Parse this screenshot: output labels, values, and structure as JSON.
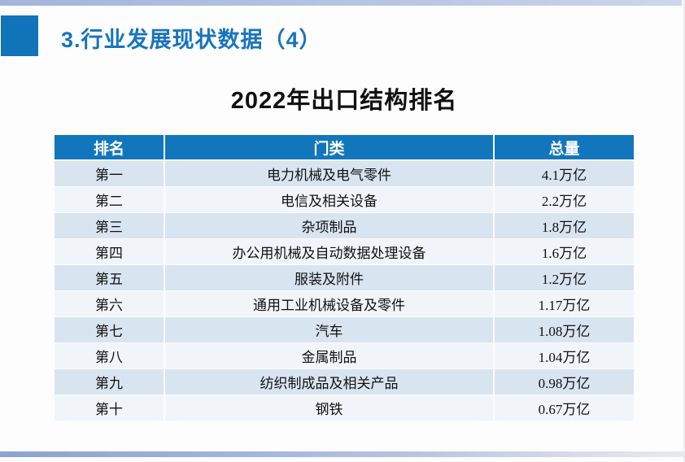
{
  "slide": {
    "header_title": "3.行业发展现状数据（4）",
    "table_title": "2022年出口结构排名"
  },
  "table": {
    "columns": [
      "排名",
      "门类",
      "总量"
    ],
    "rows": [
      [
        "第一",
        "电力机械及电气零件",
        "4.1万亿"
      ],
      [
        "第二",
        "电信及相关设备",
        "2.2万亿"
      ],
      [
        "第三",
        "杂项制品",
        "1.8万亿"
      ],
      [
        "第四",
        "办公用机械及自动数据处理设备",
        "1.6万亿"
      ],
      [
        "第五",
        "服装及附件",
        "1.2万亿"
      ],
      [
        "第六",
        "通用工业机械设备及零件",
        "1.17万亿"
      ],
      [
        "第七",
        "汽车",
        "1.08万亿"
      ],
      [
        "第八",
        "金属制品",
        "1.04万亿"
      ],
      [
        "第九",
        "纺织制成品及相关产品",
        "0.98万亿"
      ],
      [
        "第十",
        "钢铁",
        "0.67万亿"
      ]
    ]
  },
  "colors": {
    "accent_blue": "#1176bc",
    "title_blue": "#1874bc",
    "row_odd": "#d9e4f1",
    "row_even": "#f1f5fa",
    "top_bar": "#a3b5dc",
    "bottom_bar": "#8ca4d0"
  },
  "chart_data": {
    "type": "table",
    "title": "2022年出口结构排名",
    "columns": [
      "排名",
      "门类",
      "总量"
    ],
    "rows": [
      {
        "rank": "第一",
        "category": "电力机械及电气零件",
        "total": "4.1万亿"
      },
      {
        "rank": "第二",
        "category": "电信及相关设备",
        "total": "2.2万亿"
      },
      {
        "rank": "第三",
        "category": "杂项制品",
        "total": "1.8万亿"
      },
      {
        "rank": "第四",
        "category": "办公用机械及自动数据处理设备",
        "total": "1.6万亿"
      },
      {
        "rank": "第五",
        "category": "服装及附件",
        "total": "1.2万亿"
      },
      {
        "rank": "第六",
        "category": "通用工业机械设备及零件",
        "total": "1.17万亿"
      },
      {
        "rank": "第七",
        "category": "汽车",
        "total": "1.08万亿"
      },
      {
        "rank": "第八",
        "category": "金属制品",
        "total": "1.04万亿"
      },
      {
        "rank": "第九",
        "category": "纺织制成品及相关产品",
        "total": "0.98万亿"
      },
      {
        "rank": "第十",
        "category": "钢铁",
        "total": "0.67万亿"
      }
    ],
    "values_trillion_yuan": [
      4.1,
      2.2,
      1.8,
      1.6,
      1.2,
      1.17,
      1.08,
      1.04,
      0.98,
      0.67
    ]
  }
}
